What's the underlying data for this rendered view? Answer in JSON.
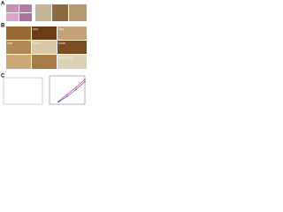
{
  "panels": [
    {
      "label": "A"
    },
    {
      "label": "B",
      "image_labels": [
        "CD3",
        "CD4",
        "CD8",
        "CD20",
        "CD68",
        "Neg control"
      ]
    },
    {
      "label": "C"
    }
  ],
  "chart": {
    "type": "line",
    "xlim": [
      0,
      4
    ],
    "ylim": [
      0,
      100
    ],
    "series": [
      {
        "color": "#e0457b",
        "values": [
          10,
          35,
          60,
          88
        ]
      },
      {
        "color": "#3a5fcd",
        "values": [
          8,
          28,
          52,
          80
        ]
      }
    ],
    "x": [
      1,
      2,
      3,
      4
    ]
  }
}
